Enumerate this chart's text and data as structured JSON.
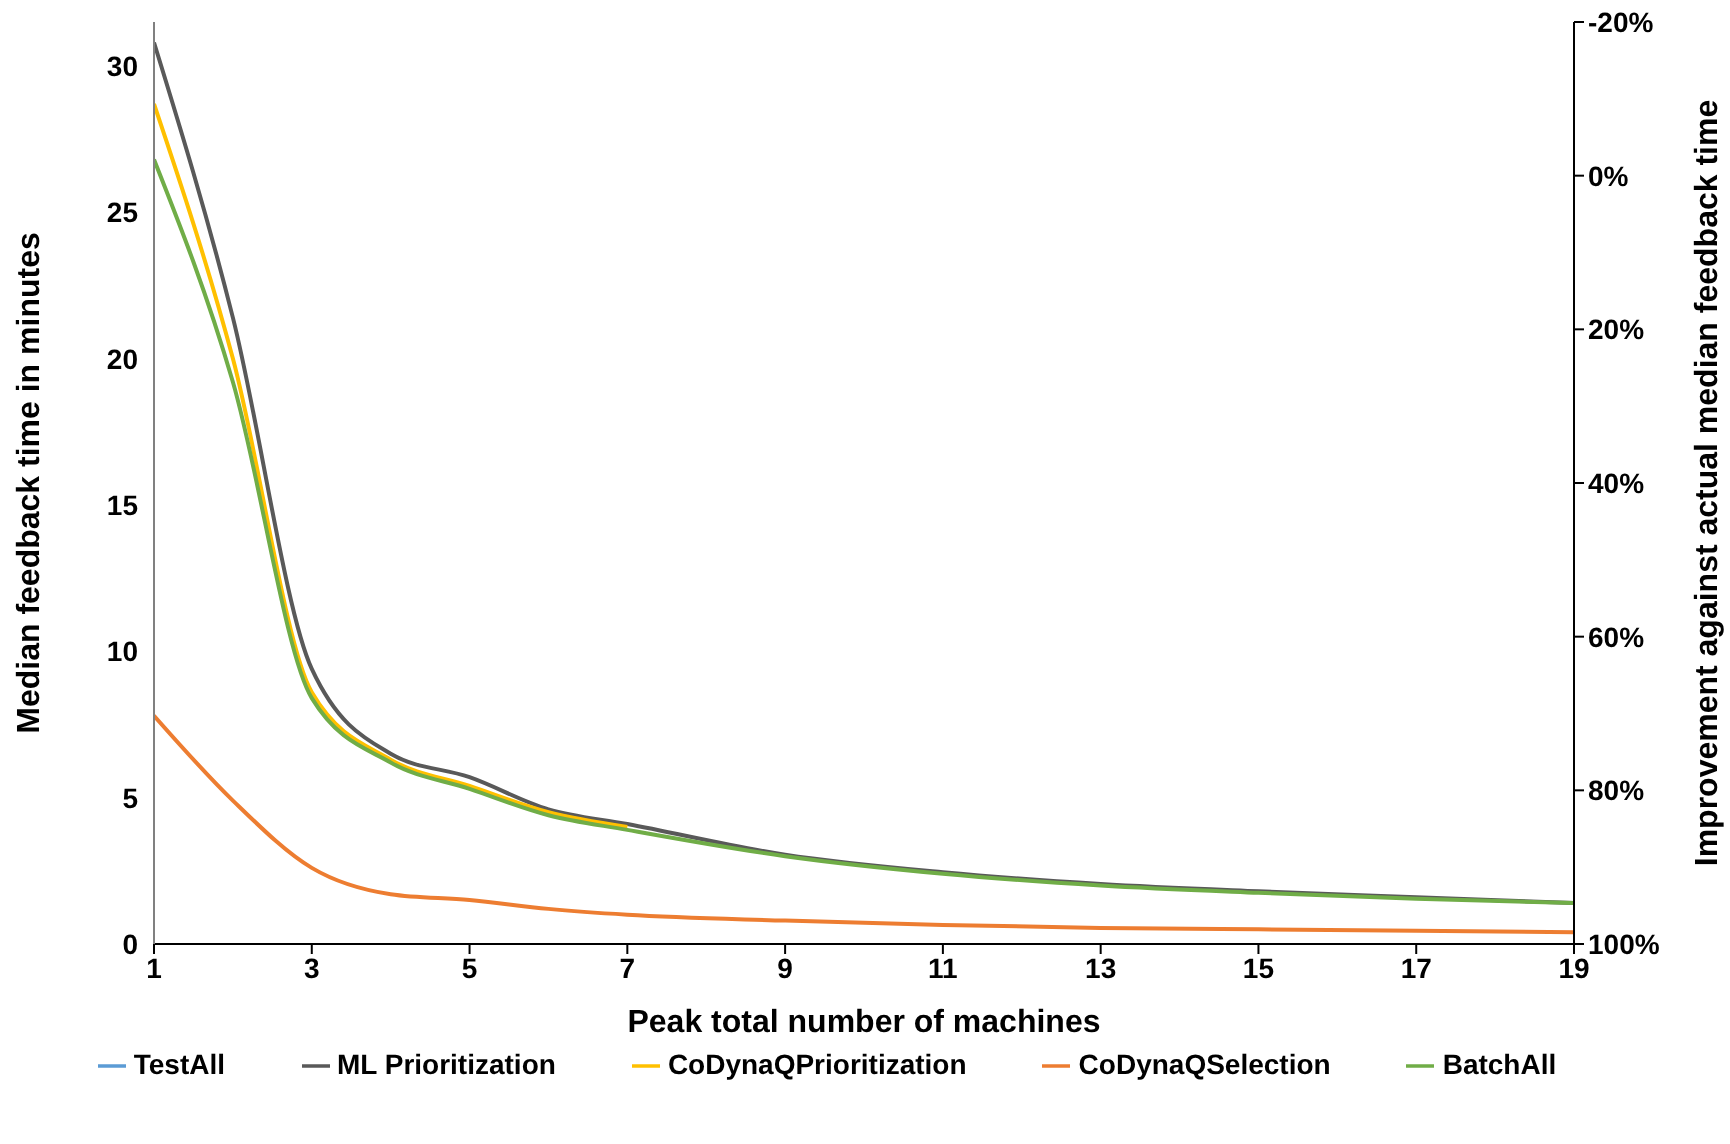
{
  "chart_data": {
    "type": "line",
    "xlabel": "Peak total number of machines",
    "ylabel": "Median feedback time in minutes",
    "y2label": "Improvement against actual median feedback time",
    "x": [
      1,
      2,
      3,
      4,
      5,
      6,
      7,
      9,
      11,
      13,
      15,
      17,
      19
    ],
    "series": [
      {
        "name": "TestAll",
        "color": "#5b9bd5",
        "values": [
          null,
          null,
          null,
          null,
          null,
          null,
          null,
          null,
          null,
          null,
          null,
          null,
          null
        ]
      },
      {
        "name": "ML Prioritization",
        "color": "#595959",
        "values": [
          30.8,
          21.4,
          9.4,
          6.5,
          5.7,
          4.6,
          4.1,
          3.05,
          2.45,
          2.05,
          1.8,
          1.6,
          1.4
        ]
      },
      {
        "name": "CoDynaQPrioritization",
        "color": "#ffc000",
        "values": [
          28.7,
          20,
          8.6,
          6.3,
          5.4,
          4.5,
          4.0,
          null,
          null,
          null,
          null,
          null,
          null
        ]
      },
      {
        "name": "CoDynaQSelection",
        "color": "#ed7d31",
        "values": [
          7.8,
          4.9,
          2.6,
          1.7,
          1.5,
          1.2,
          1.0,
          0.8,
          0.65,
          0.55,
          0.5,
          0.45,
          0.4
        ]
      },
      {
        "name": "BatchAll",
        "color": "#70ad47",
        "values": [
          26.8,
          19.2,
          8.4,
          6.2,
          5.3,
          4.4,
          3.9,
          3.0,
          2.4,
          2.0,
          1.75,
          1.55,
          1.4
        ]
      }
    ],
    "xlim": [
      1,
      19
    ],
    "xticks": [
      1,
      3,
      5,
      7,
      9,
      11,
      13,
      15,
      17,
      19
    ],
    "ylim": [
      0,
      31.5
    ],
    "yticks": [
      0,
      5,
      10,
      15,
      20,
      25,
      30
    ],
    "y2lim": [
      100,
      -20
    ],
    "y2ticks": [
      {
        "value": -20,
        "label": "-20%"
      },
      {
        "value": 0,
        "label": "0%"
      },
      {
        "value": 20,
        "label": "20%"
      },
      {
        "value": 40,
        "label": "40%"
      },
      {
        "value": 60,
        "label": "60%"
      },
      {
        "value": 80,
        "label": "80%"
      },
      {
        "value": 100,
        "label": "100%"
      }
    ],
    "legend": "bottom",
    "marker": "none",
    "line_style": "solid"
  }
}
